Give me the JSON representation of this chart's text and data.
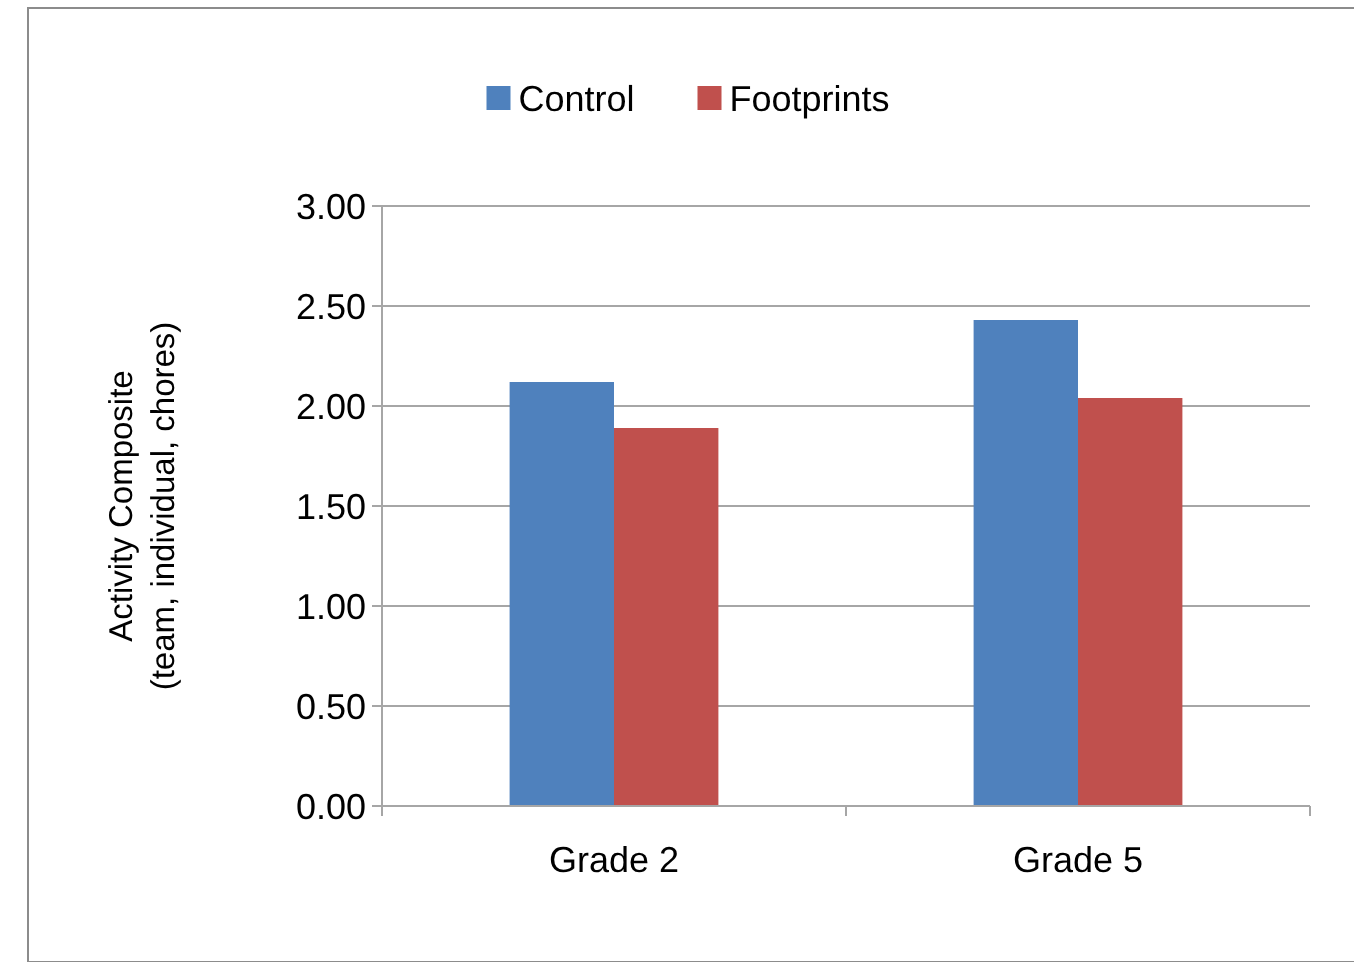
{
  "chart_data": {
    "type": "bar",
    "ylabel": "Activity Composite\n(team, individual, chores)",
    "categories": [
      "Grade 2",
      "Grade 5"
    ],
    "series": [
      {
        "name": "Control",
        "color": "#4f81bd",
        "values": [
          2.12,
          2.43
        ]
      },
      {
        "name": "Footprints",
        "color": "#c0504d",
        "values": [
          1.89,
          2.04
        ]
      }
    ],
    "ylim": [
      0,
      3
    ],
    "yticks": [
      {
        "value": 0,
        "label": "0.00"
      },
      {
        "value": 0.5,
        "label": "0.50"
      },
      {
        "value": 1,
        "label": "1.00"
      },
      {
        "value": 1.5,
        "label": "1.50"
      },
      {
        "value": 2,
        "label": "2.00"
      },
      {
        "value": 2.5,
        "label": "2.50"
      },
      {
        "value": 3,
        "label": "3.00"
      }
    ],
    "grid": "y",
    "legend": "top"
  }
}
